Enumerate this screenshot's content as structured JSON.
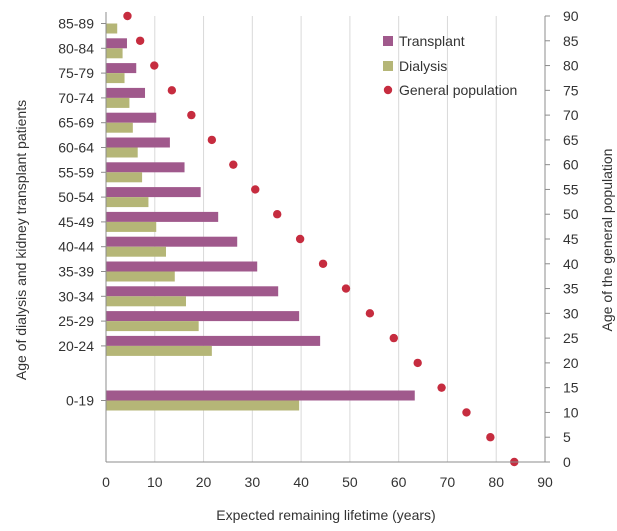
{
  "chart_data": {
    "type": "bar",
    "orientation": "horizontal",
    "categories": [
      "85-89",
      "80-84",
      "75-79",
      "70-74",
      "65-69",
      "60-64",
      "55-59",
      "50-54",
      "45-49",
      "40-44",
      "35-39",
      "30-34",
      "25-29",
      "20-24",
      "0-19"
    ],
    "series": [
      {
        "name": "Transplant",
        "color": "#a0598c",
        "values": [
          null,
          4.3,
          6.2,
          8.0,
          10.3,
          13.1,
          16.1,
          19.4,
          23.0,
          26.9,
          31.0,
          35.3,
          39.6,
          43.9,
          63.3
        ]
      },
      {
        "name": "Dialysis",
        "color": "#b5b677",
        "values": [
          2.3,
          3.4,
          3.8,
          4.8,
          5.5,
          6.5,
          7.4,
          8.7,
          10.3,
          12.3,
          14.1,
          16.4,
          19.0,
          21.7,
          39.6
        ]
      }
    ],
    "general_population": {
      "name": "General population",
      "color": "#c62c3f",
      "ages": [
        90,
        85,
        80,
        75,
        70,
        65,
        60,
        55,
        50,
        45,
        40,
        35,
        30,
        25,
        20,
        15,
        10,
        5,
        0
      ],
      "remaining_years": [
        4.4,
        7.0,
        9.9,
        13.5,
        17.5,
        21.7,
        26.1,
        30.6,
        35.1,
        39.8,
        44.5,
        49.2,
        54.1,
        59.0,
        63.9,
        68.8,
        73.9,
        78.8,
        83.7
      ]
    },
    "xlabel": "Expected remaining lifetime (years)",
    "ylabel": "Age of dialysis  and  kidney transplant patients",
    "y2label": "Age of the general population",
    "xlim": [
      0,
      90
    ],
    "xticks": [
      "0",
      "10",
      "20",
      "30",
      "40",
      "50",
      "60",
      "70",
      "80",
      "90"
    ],
    "y2lim": [
      0,
      90
    ],
    "y2ticks": [
      "0",
      "5",
      "10",
      "15",
      "20",
      "25",
      "30",
      "35",
      "40",
      "45",
      "50",
      "55",
      "60",
      "65",
      "70",
      "75",
      "80",
      "85",
      "90"
    ],
    "grid": "vertical",
    "legend_position": "top-right"
  }
}
